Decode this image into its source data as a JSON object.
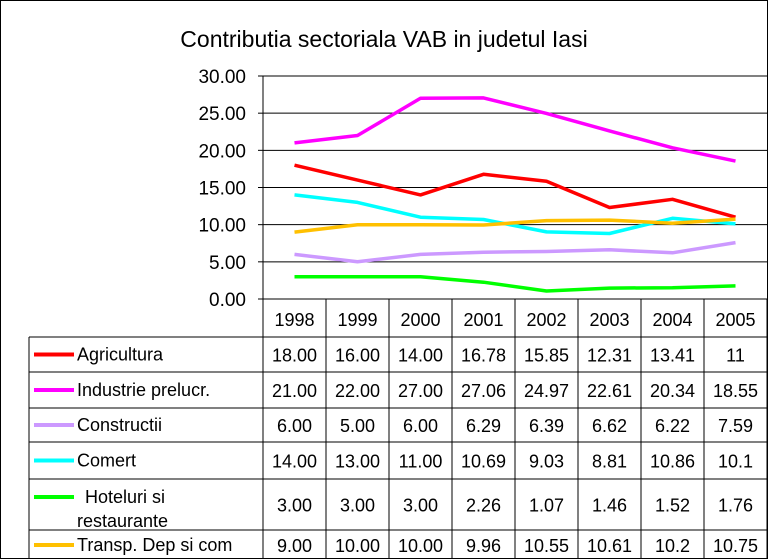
{
  "chart_data": {
    "type": "line",
    "title": "Contributia sectoriala VAB in judetul Iasi",
    "xlabel": "",
    "ylabel": "",
    "ylim": [
      0,
      30
    ],
    "y_ticks": [
      "0.00",
      "5.00",
      "10.00",
      "15.00",
      "20.00",
      "25.00",
      "30.00"
    ],
    "grid": true,
    "legend": "data-table",
    "categories": [
      "1998",
      "1999",
      "2000",
      "2001",
      "2002",
      "2003",
      "2004",
      "2005"
    ],
    "series": [
      {
        "name": "Agricultura",
        "color": "#ff0000",
        "values": [
          18.0,
          16.0,
          14.0,
          16.78,
          15.85,
          12.31,
          13.41,
          11
        ],
        "labels": [
          "18.00",
          "16.00",
          "14.00",
          "16.78",
          "15.85",
          "12.31",
          "13.41",
          "11"
        ]
      },
      {
        "name": "Industrie prelucr.",
        "color": "#ff00ff",
        "values": [
          21.0,
          22.0,
          27.0,
          27.06,
          24.97,
          22.61,
          20.34,
          18.55
        ],
        "labels": [
          "21.00",
          "22.00",
          "27.00",
          "27.06",
          "24.97",
          "22.61",
          "20.34",
          "18.55"
        ]
      },
      {
        "name": "Constructii",
        "color": "#cc99ff",
        "values": [
          6.0,
          5.0,
          6.0,
          6.29,
          6.39,
          6.62,
          6.22,
          7.59
        ],
        "labels": [
          "6.00",
          "5.00",
          "6.00",
          "6.29",
          "6.39",
          "6.62",
          "6.22",
          "7.59"
        ]
      },
      {
        "name": "Comert",
        "color": "#00ffff",
        "values": [
          14.0,
          13.0,
          11.0,
          10.69,
          9.03,
          8.81,
          10.86,
          10.1
        ],
        "labels": [
          "14.00",
          "13.00",
          "11.00",
          "10.69",
          "9.03",
          "8.81",
          "10.86",
          "10.1"
        ]
      },
      {
        "name": "Hoteluri si restaurante",
        "name_lines": [
          "Hoteluri si",
          "restaurante"
        ],
        "color": "#00ff00",
        "values": [
          3.0,
          3.0,
          3.0,
          2.26,
          1.07,
          1.46,
          1.52,
          1.76
        ],
        "labels": [
          "3.00",
          "3.00",
          "3.00",
          "2.26",
          "1.07",
          "1.46",
          "1.52",
          "1.76"
        ]
      },
      {
        "name": "Transp. Dep si com",
        "color": "#ffc000",
        "values": [
          9.0,
          10.0,
          10.0,
          9.96,
          10.55,
          10.61,
          10.2,
          10.75
        ],
        "labels": [
          "9.00",
          "10.00",
          "10.00",
          "9.96",
          "10.55",
          "10.61",
          "10.2",
          "10.75"
        ]
      }
    ]
  }
}
